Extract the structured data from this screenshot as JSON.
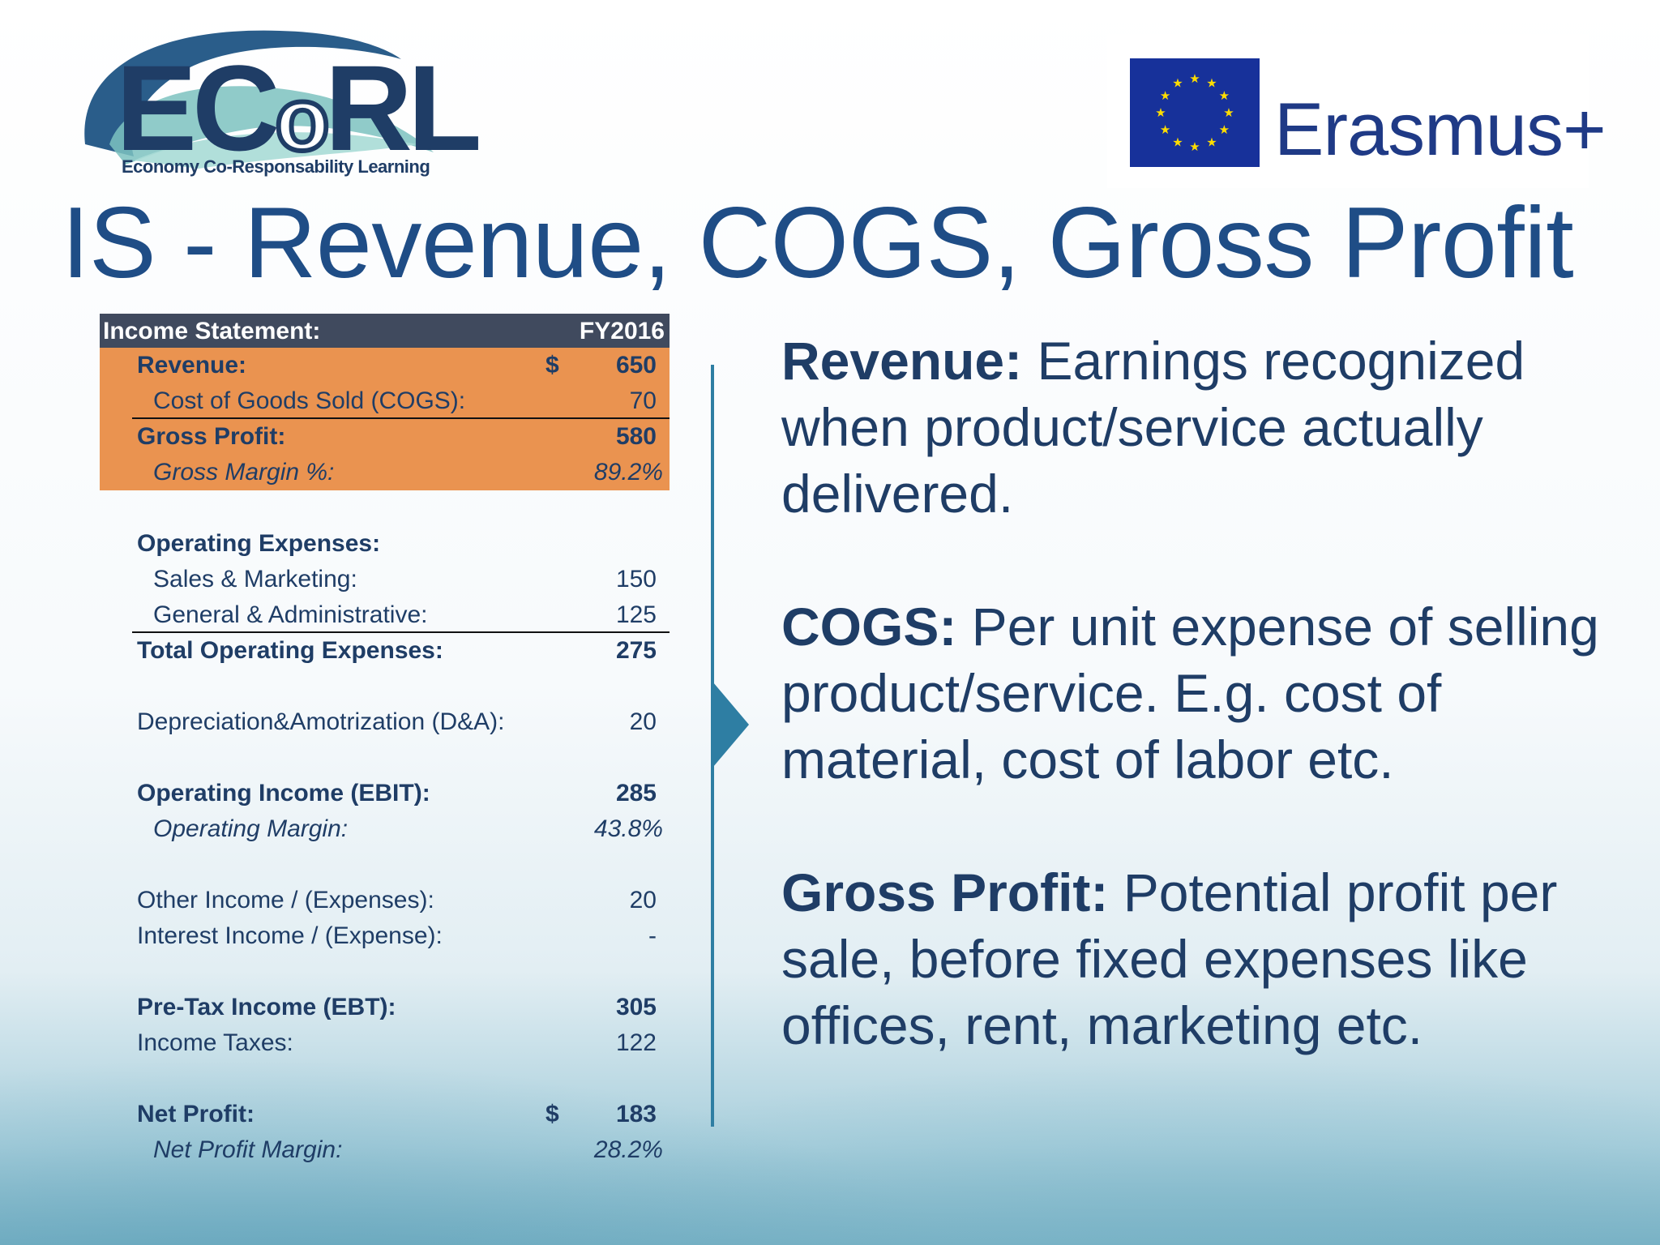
{
  "logos": {
    "ecorl_text": "ECoRL",
    "ecorl_tagline": "Economy Co-Responsability Learning",
    "erasmus_text": "Erasmus+"
  },
  "title": "IS - Revenue, COGS, Gross Profit",
  "income_statement": {
    "header_label": "Income Statement:",
    "header_period": "FY2016",
    "revenue": {
      "label": "Revenue:",
      "currency": "$",
      "value": "650"
    },
    "cogs": {
      "label": "Cost of Goods Sold (COGS):",
      "value": "70"
    },
    "gross_profit": {
      "label": "Gross Profit:",
      "value": "580"
    },
    "gross_margin": {
      "label": "Gross Margin %:",
      "value": "89.2%"
    },
    "opex_header": {
      "label": "Operating Expenses:"
    },
    "sales_marketing": {
      "label": "Sales & Marketing:",
      "value": "150"
    },
    "general_admin": {
      "label": "General & Administrative:",
      "value": "125"
    },
    "total_opex": {
      "label": "Total Operating Expenses:",
      "value": "275"
    },
    "da": {
      "label": "Depreciation&Amotrization (D&A):",
      "value": "20"
    },
    "ebit": {
      "label": "Operating Income (EBIT):",
      "value": "285"
    },
    "operating_margin": {
      "label": "Operating Margin:",
      "value": "43.8%"
    },
    "other_income": {
      "label": "Other Income / (Expenses):",
      "value": "20"
    },
    "interest_income": {
      "label": "Interest Income / (Expense):",
      "value": "-"
    },
    "ebt": {
      "label": "Pre-Tax Income (EBT):",
      "value": "305"
    },
    "income_taxes": {
      "label": "Income Taxes:",
      "value": "122"
    },
    "net_profit": {
      "label": "Net Profit:",
      "currency": "$",
      "value": "183"
    },
    "net_margin": {
      "label": "Net Profit Margin:",
      "value": "28.2%"
    }
  },
  "definitions": [
    {
      "term": "Revenue:",
      "text": " Earnings recognized when product/service actually delivered."
    },
    {
      "term": "COGS:",
      "text": " Per unit expense of selling product/service. E.g. cost of material, cost of labor etc."
    },
    {
      "term": "Gross Profit:",
      "text": " Potential profit per sale, before fixed expenses like offices, rent, marketing etc."
    }
  ],
  "colors": {
    "title": "#1f4d86",
    "table_header_bg": "#404a5e",
    "highlight_bg": "#ea9350",
    "divider": "#2e7ea3",
    "eu_flag": "#17319a",
    "eu_star": "#ffdd00"
  }
}
